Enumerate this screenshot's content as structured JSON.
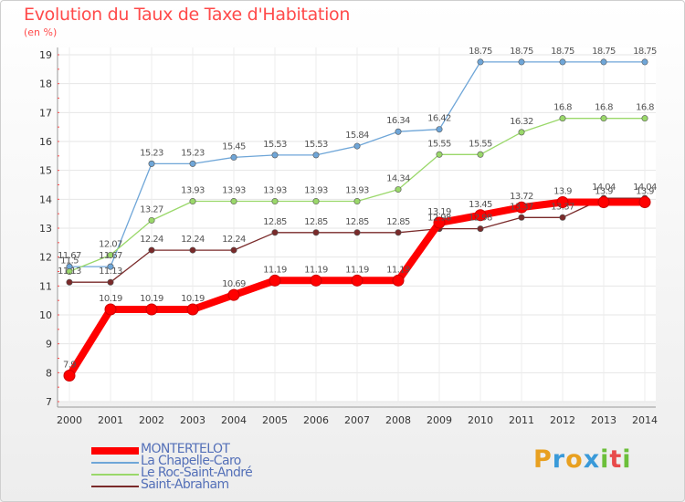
{
  "title": "Evolution du Taux de Taxe d'Habitation",
  "unit": "(en %)",
  "logo": {
    "text": "Proxiti",
    "colors": [
      "#e8a020",
      "#3a9ad9",
      "#e8a020",
      "#3a9ad9",
      "#6cbf3a",
      "#e84a4a",
      "#6cbf3a"
    ]
  },
  "chart_data": {
    "type": "line",
    "title": "Evolution du Taux de Taxe d'Habitation",
    "ylabel": "(en %)",
    "xlabel": "",
    "ylim": [
      7,
      19
    ],
    "yticks": [
      "7",
      "8",
      "9",
      "10",
      "11",
      "12",
      "13",
      "14",
      "15",
      "16",
      "17",
      "18",
      "19"
    ],
    "grid": true,
    "legend": "bottom-left",
    "x": [
      "2000",
      "2001",
      "2002",
      "2003",
      "2004",
      "2005",
      "2006",
      "2007",
      "2008",
      "2009",
      "2010",
      "2011",
      "2012",
      "2013",
      "2014"
    ],
    "series": [
      {
        "name": "MONTERTELOT",
        "color": "#ff0000",
        "values": [
          7.9,
          10.19,
          10.19,
          10.19,
          10.69,
          11.19,
          11.19,
          11.19,
          11.19,
          13.19,
          13.45,
          13.72,
          13.9,
          13.9,
          13.9
        ],
        "labels": [
          "7.9",
          "10.19",
          "10.19",
          "10.19",
          "10.69",
          "11.19",
          "11.19",
          "11.19",
          "11.19",
          "13.19",
          "13.45",
          "13.72",
          "13.9",
          "13.9",
          "13.9"
        ]
      },
      {
        "name": "La Chapelle-Caro",
        "color": "#6fa6d8",
        "values": [
          11.67,
          11.67,
          15.23,
          15.23,
          15.45,
          15.53,
          15.53,
          15.84,
          16.34,
          16.42,
          18.75,
          18.75,
          18.75,
          18.75,
          18.75
        ],
        "labels": [
          "11.67",
          "11.67",
          "15.23",
          "15.23",
          "15.45",
          "15.53",
          "15.53",
          "15.84",
          "16.34",
          "16.42",
          "18.75",
          "18.75",
          "18.75",
          "18.75",
          "18.75"
        ]
      },
      {
        "name": "Le Roc-Saint-André",
        "color": "#9ad86a",
        "values": [
          11.5,
          12.07,
          13.27,
          13.93,
          13.93,
          13.93,
          13.93,
          13.93,
          14.34,
          15.55,
          15.55,
          16.32,
          16.8,
          16.8,
          16.8
        ],
        "labels": [
          "11.5",
          "12.07",
          "13.27",
          "13.93",
          "13.93",
          "13.93",
          "13.93",
          "13.93",
          "14.34",
          "15.55",
          "15.55",
          "16.32",
          "16.8",
          "16.8",
          "16.8"
        ]
      },
      {
        "name": "Saint-Abraham",
        "color": "#7a2a2a",
        "values": [
          11.13,
          11.13,
          12.24,
          12.24,
          12.24,
          12.85,
          12.85,
          12.85,
          12.85,
          12.98,
          12.98,
          13.37,
          13.37,
          14.04,
          14.04
        ],
        "labels": [
          "11.13",
          "11.13",
          "12.24",
          "12.24",
          "12.24",
          "12.85",
          "12.85",
          "12.85",
          "12.85",
          "12.98",
          "12.98",
          "13.37",
          "13.37",
          "14.04",
          "14.04"
        ]
      }
    ]
  }
}
